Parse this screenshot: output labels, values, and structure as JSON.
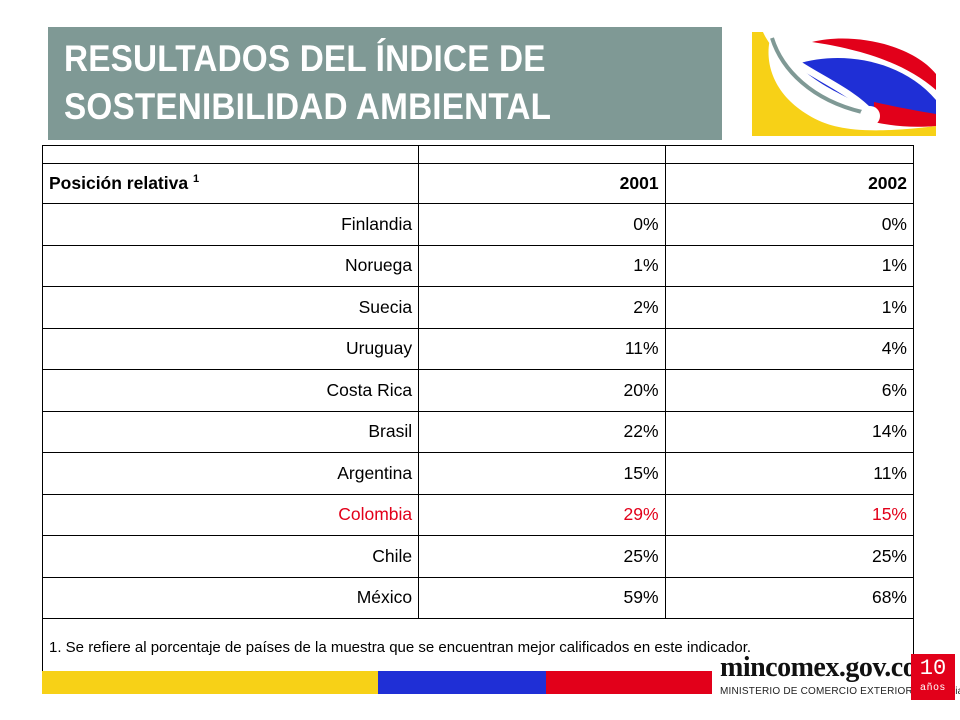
{
  "title": {
    "line1": "RESULTADOS DEL ÍNDICE DE",
    "line2": "SOSTENIBILIDAD AMBIENTAL"
  },
  "table": {
    "header": {
      "label": "Posición relativa",
      "sup": "1",
      "col2001": "2001",
      "col2002": "2002"
    },
    "rows": [
      {
        "country": "Finlandia",
        "v2001": "0%",
        "v2002": "0%"
      },
      {
        "country": "Noruega",
        "v2001": "1%",
        "v2002": "1%"
      },
      {
        "country": "Suecia",
        "v2001": "2%",
        "v2002": "1%"
      },
      {
        "country": "Uruguay",
        "v2001": "11%",
        "v2002": "4%"
      },
      {
        "country": "Costa Rica",
        "v2001": "20%",
        "v2002": "6%"
      },
      {
        "country": "Brasil",
        "v2001": "22%",
        "v2002": "14%"
      },
      {
        "country": "Argentina",
        "v2001": "15%",
        "v2002": "11%"
      },
      {
        "country": "Colombia",
        "v2001": "29%",
        "v2002": "15%"
      },
      {
        "country": "Chile",
        "v2001": "25%",
        "v2002": "25%"
      },
      {
        "country": "México",
        "v2001": "59%",
        "v2002": "68%"
      }
    ],
    "highlight_color": "#e2001a",
    "footnote": "1. Se refiere al porcentaje de países de la muestra que se encuentran mejor calificados en este indicador."
  },
  "footer": {
    "brand": "mincomex.gov.co",
    "ministry": "MINISTERIO DE COMERCIO EXTERIOR / colombia",
    "badge_number": "10",
    "badge_label": "años",
    "flag_colors": [
      "#f7d117",
      "#1f2fd6",
      "#e2001a"
    ]
  },
  "colors": {
    "title_bg": "#7f9995",
    "yellow": "#f7d117",
    "blue": "#1f2fd6",
    "red": "#e2001a"
  }
}
